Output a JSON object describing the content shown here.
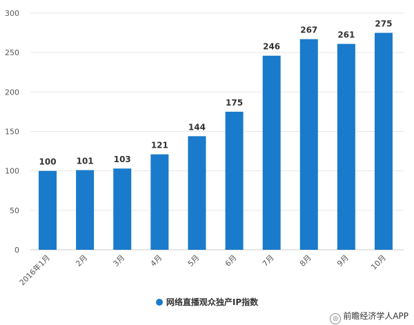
{
  "chart_data": {
    "type": "bar",
    "categories": [
      "2016年1月",
      "2月",
      "3月",
      "4月",
      "5月",
      "6月",
      "7月",
      "8月",
      "9月",
      "10月"
    ],
    "series": [
      {
        "name": "网络直播观众独产IP指数",
        "values": [
          100,
          101,
          103,
          121,
          144,
          175,
          246,
          267,
          261,
          275
        ]
      }
    ],
    "ylim": [
      0,
      300
    ],
    "yticks": [
      0,
      50,
      100,
      150,
      200,
      250,
      300
    ],
    "grid": true,
    "legend": "bottom",
    "bar_color": "#1a7acb"
  },
  "credit": "前瞻经济学人APP"
}
